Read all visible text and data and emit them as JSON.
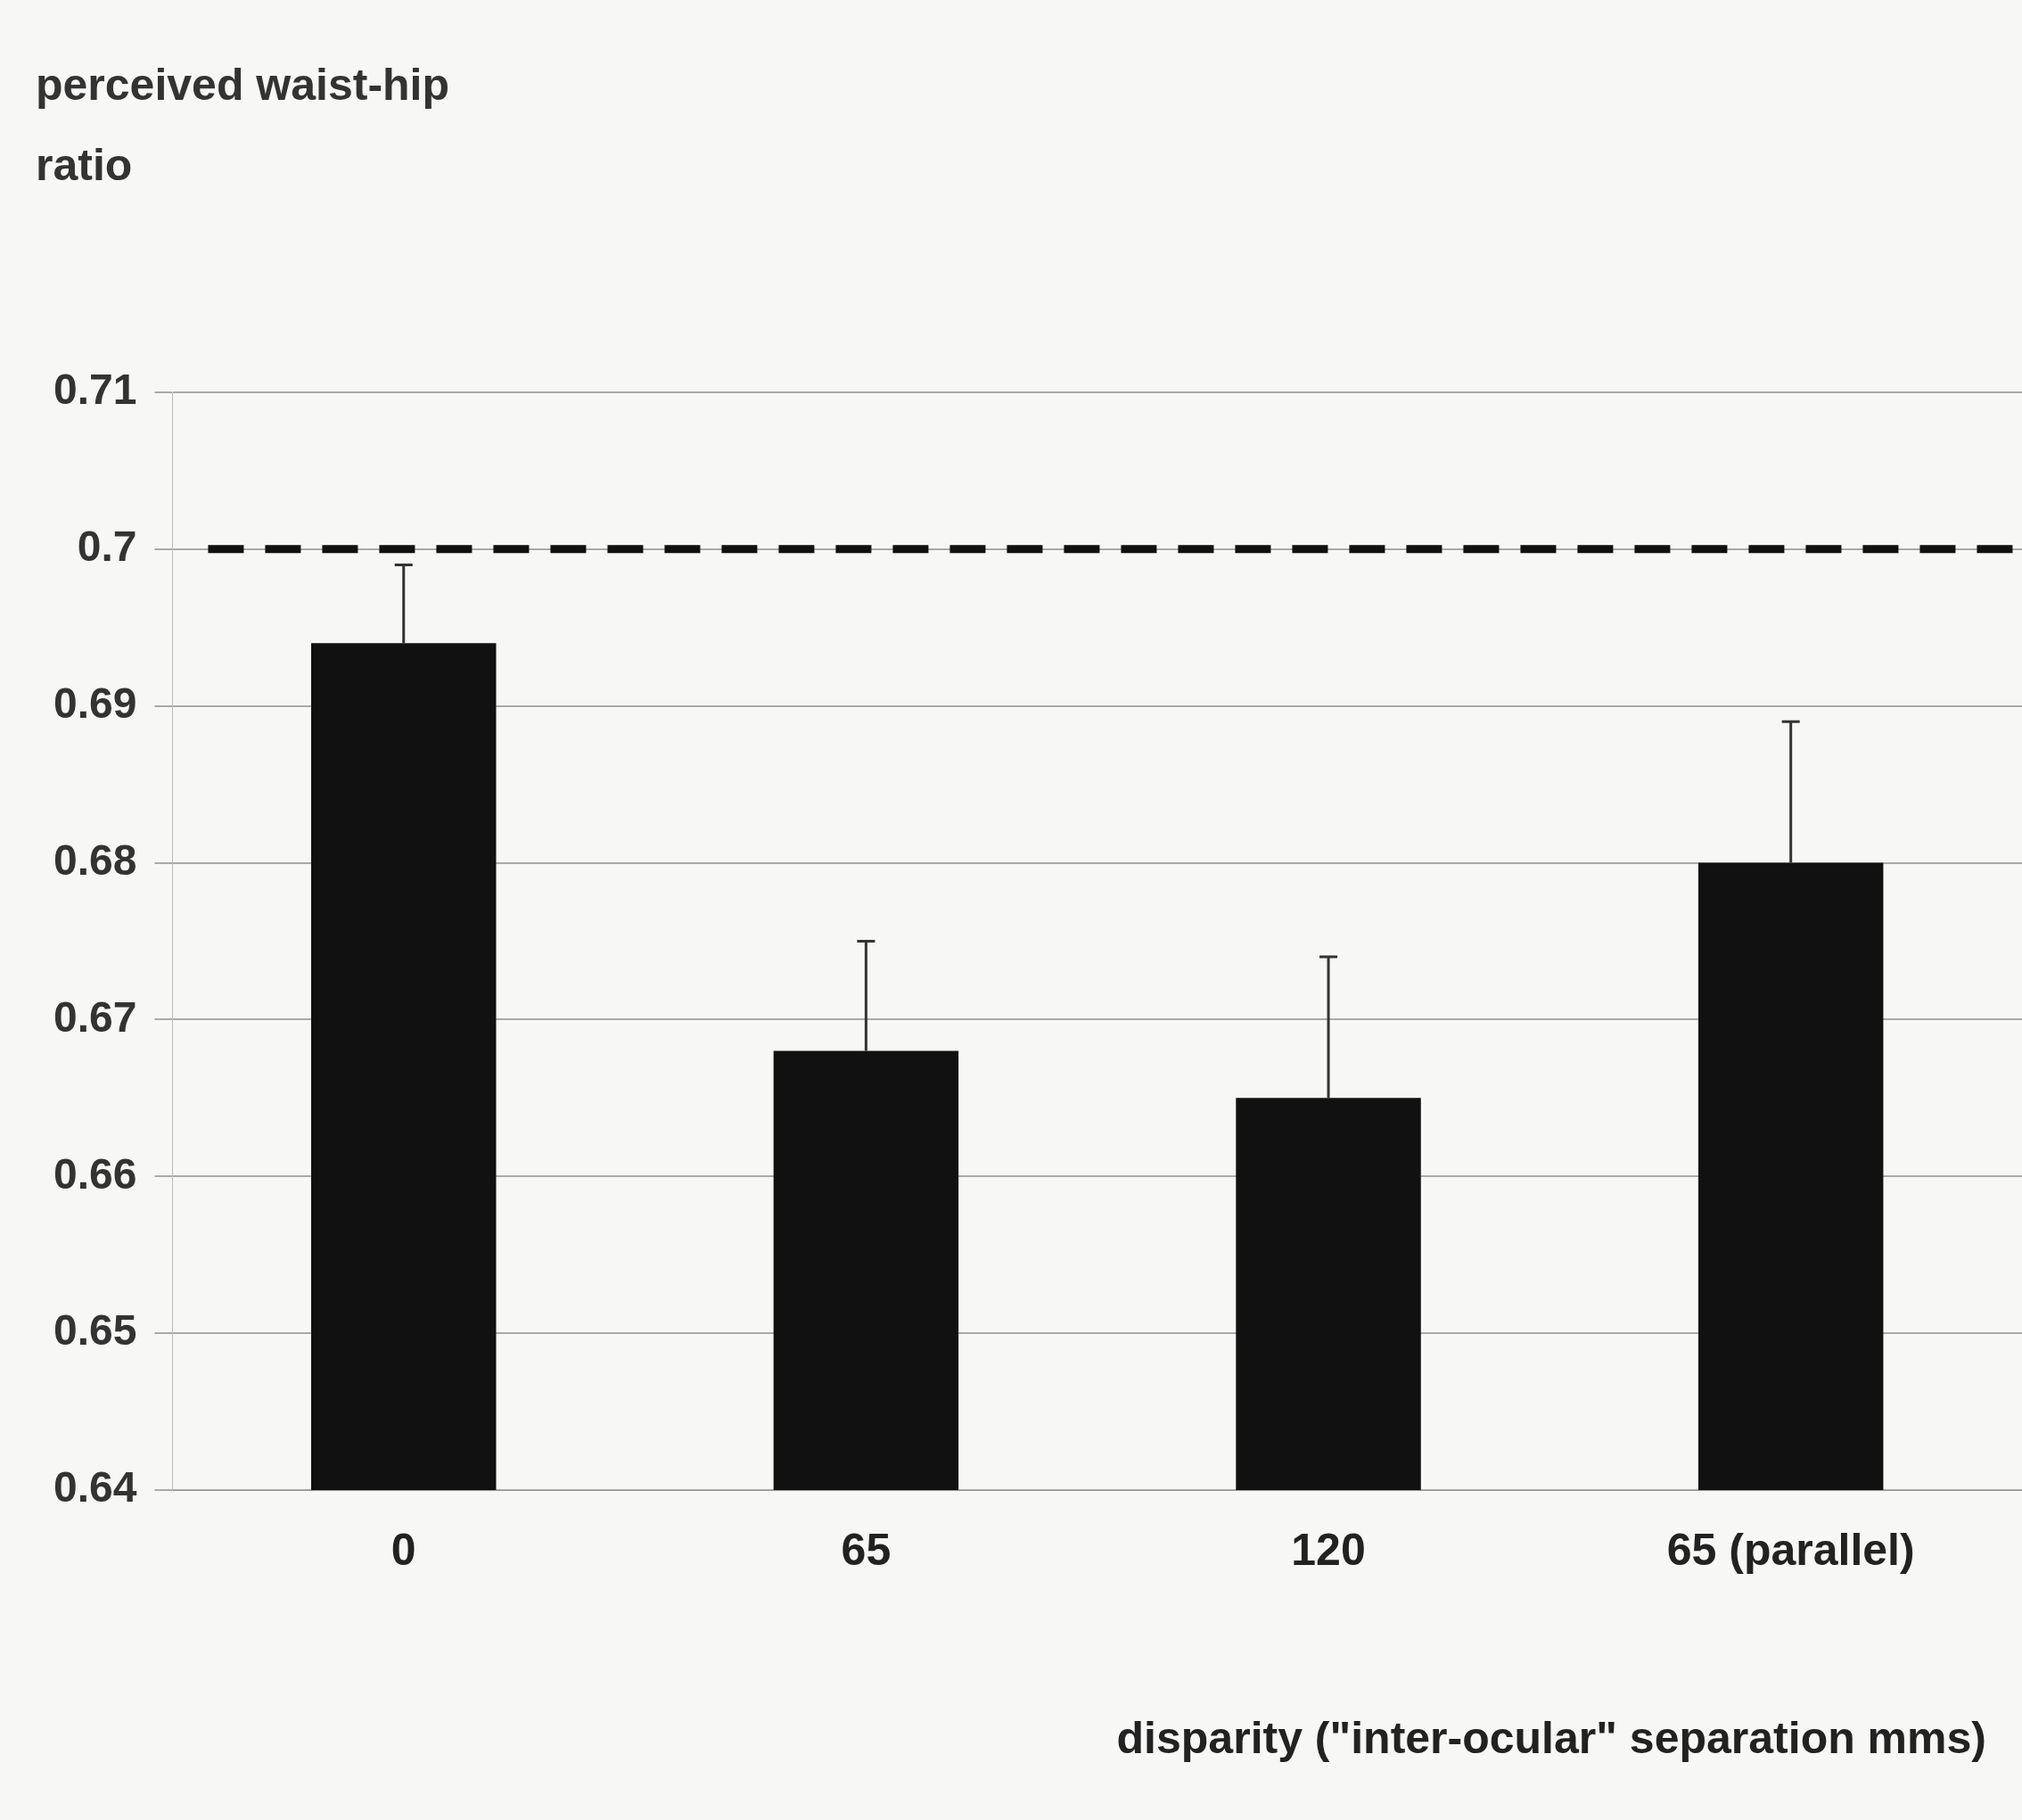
{
  "chart_data": {
    "type": "bar",
    "xlabel": "disparity (\"inter-ocular\" separation mms)",
    "ylabel": "perceived waist-hip ratio",
    "categories": [
      "0",
      "65",
      "120",
      "65 (parallel)"
    ],
    "values": [
      0.694,
      0.668,
      0.665,
      0.68
    ],
    "errors": [
      [
        0.694,
        0.699
      ],
      [
        0.668,
        0.675
      ],
      [
        0.665,
        0.674
      ],
      [
        0.68,
        0.689
      ]
    ],
    "color": "#111111",
    "ylim": [
      0.64,
      0.71
    ],
    "yticks": [
      0.64,
      0.65,
      0.66,
      0.67,
      0.68,
      0.69,
      {
        "value": 0.7,
        "label": "0.7"
      },
      0.71
    ],
    "grid": "y",
    "legend": false,
    "ref_lines": [
      {
        "axis": "y",
        "value": 0.7,
        "color": "#111111",
        "line_style": "dashed"
      }
    ]
  }
}
